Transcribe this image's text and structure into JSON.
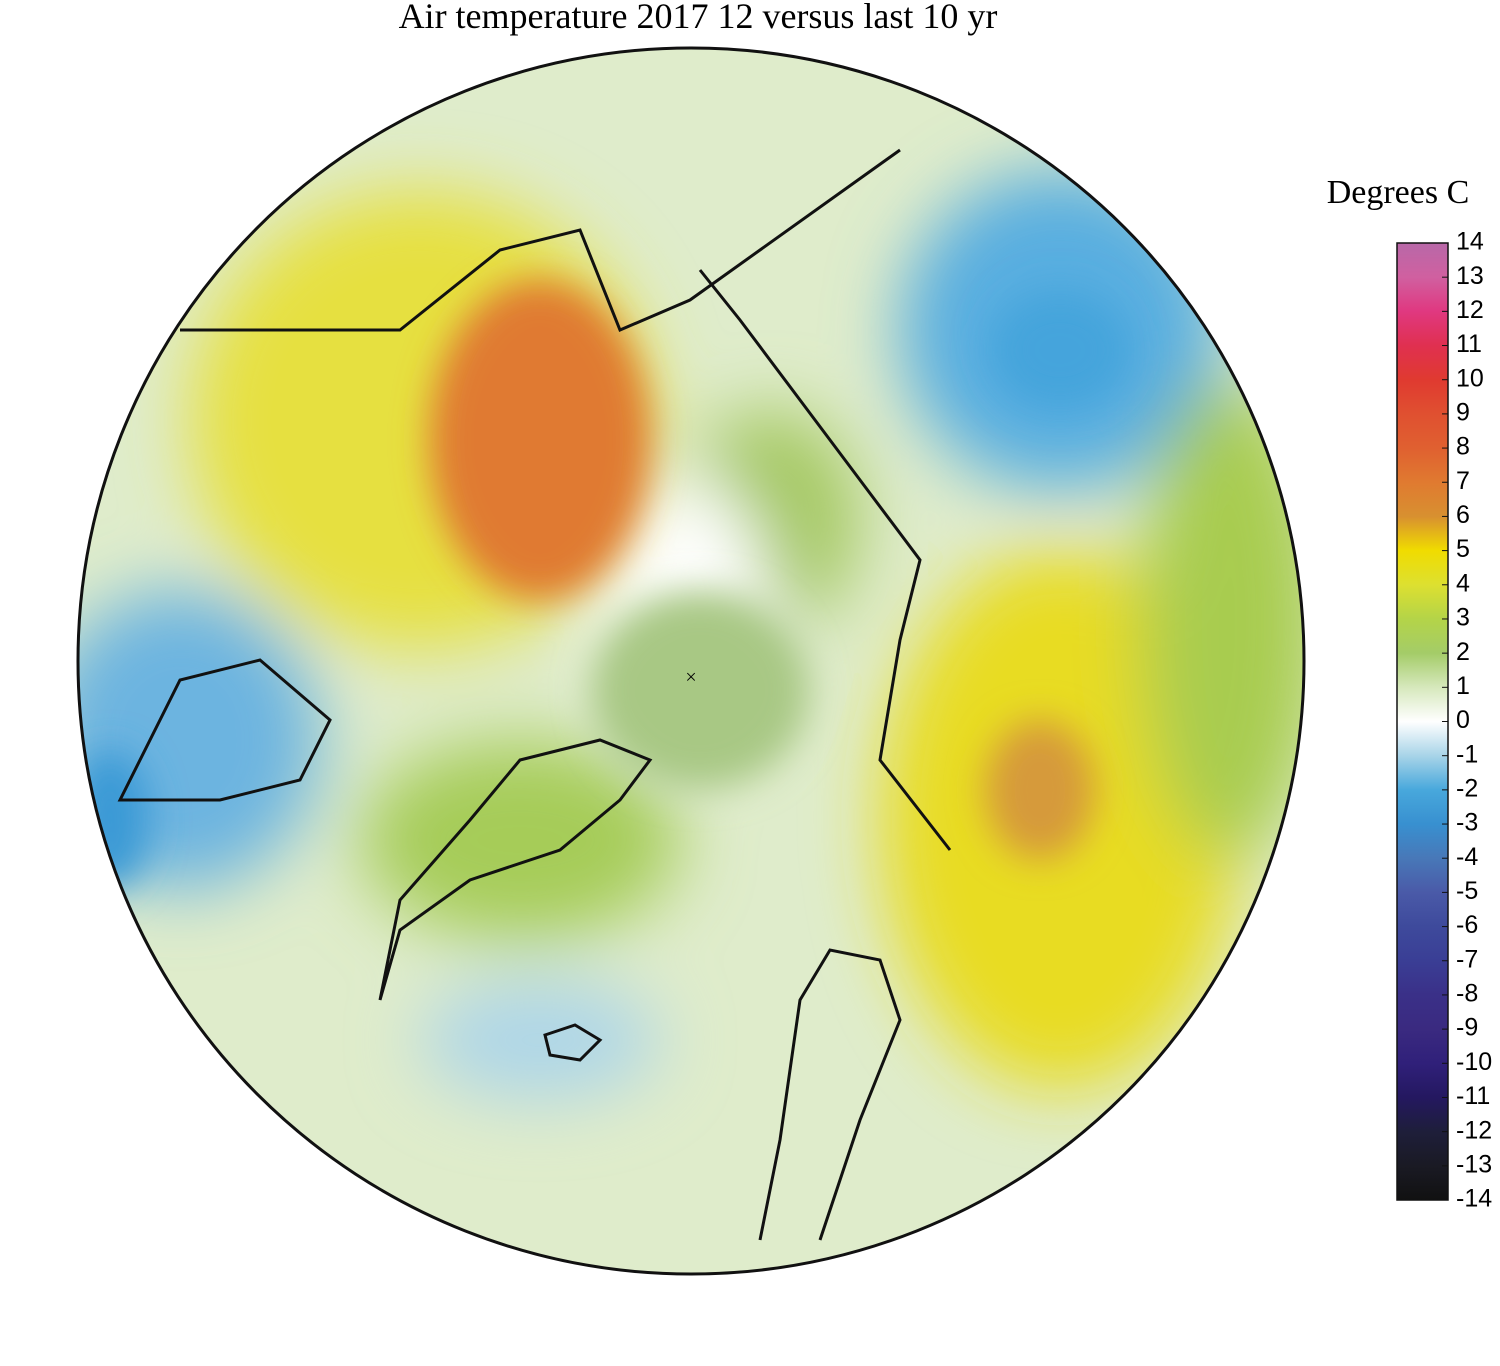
{
  "title": "Air temperature 2017 12 versus last 10 yr",
  "colorbar": {
    "label": "Degrees C",
    "range": [
      -14,
      14
    ],
    "ticks": [
      14,
      13,
      12,
      11,
      10,
      9,
      8,
      7,
      6,
      5,
      4,
      3,
      2,
      1,
      0,
      -1,
      -2,
      -3,
      -4,
      -5,
      -6,
      -7,
      -8,
      -9,
      -10,
      -11,
      -12,
      -13,
      -14
    ],
    "colors": [
      "#b868a8",
      "#d060a0",
      "#e03880",
      "#e03050",
      "#e03a30",
      "#e05030",
      "#e06030",
      "#e07a30",
      "#d89030",
      "#f0dc00",
      "#dde030",
      "#b4d448",
      "#a4cc68",
      "#d6e8bc",
      "#ffffff",
      "#a8d4e8",
      "#48a8dc",
      "#3890d0",
      "#4878b8",
      "#4a5aa8",
      "#3e4a9c",
      "#3a3e95",
      "#3a3088",
      "#3a2a80",
      "#30207a",
      "#241860",
      "#1e1e3a",
      "#1a1a24",
      "#111111"
    ]
  }
}
